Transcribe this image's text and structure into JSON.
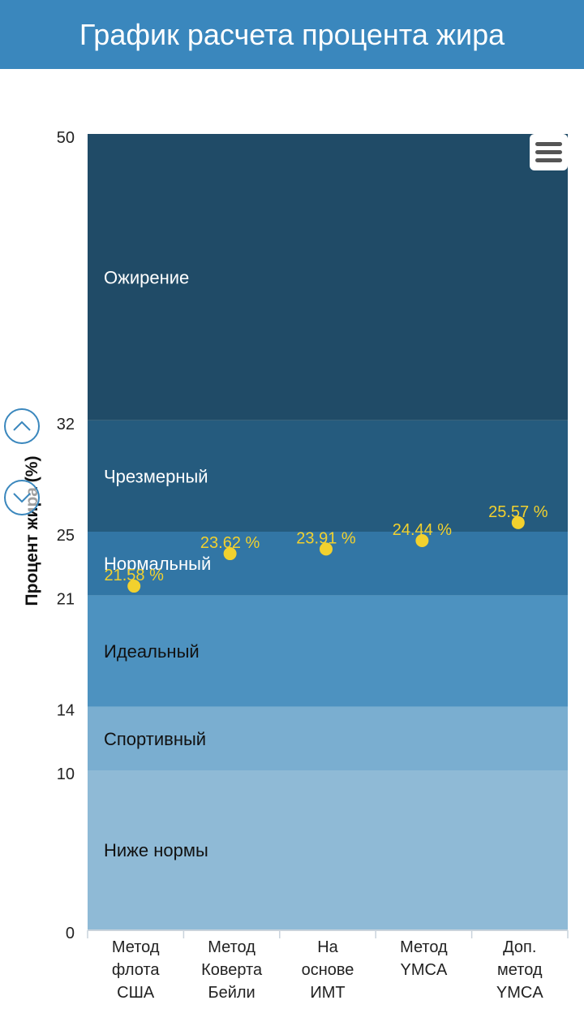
{
  "header": {
    "title": "График расчета процента жира"
  },
  "chart_data": {
    "type": "scatter",
    "title": "График расчета процента жира",
    "ylabel": "Процент жира (%)",
    "ylim": [
      0,
      50
    ],
    "yticks": [
      0,
      10,
      14,
      21,
      25,
      32,
      50
    ],
    "categories": [
      [
        "Метод",
        "флота",
        "США"
      ],
      [
        "Метод",
        "Коверта",
        "Бейли"
      ],
      [
        "На",
        "основе",
        "ИМТ"
      ],
      [
        "Метод",
        "YMCA"
      ],
      [
        "Доп.",
        "метод",
        "YMCA"
      ]
    ],
    "values": [
      21.58,
      23.62,
      23.91,
      24.44,
      25.57
    ],
    "value_labels": [
      "21.58 %",
      "23.62 %",
      "23.91 %",
      "24.44 %",
      "25.57 %"
    ],
    "point_color": "#f2d12e",
    "bands": [
      {
        "name": "Ниже нормы",
        "from": 0,
        "to": 10,
        "color": "#8fbad6",
        "text_color": "#111111"
      },
      {
        "name": "Спортивный",
        "from": 10,
        "to": 14,
        "color": "#7aaed0",
        "text_color": "#111111"
      },
      {
        "name": "Идеальный",
        "from": 14,
        "to": 21,
        "color": "#4d92c0",
        "text_color": "#111111"
      },
      {
        "name": "Нормальный",
        "from": 21,
        "to": 25,
        "color": "#3276a5",
        "text_color": "#ffffff"
      },
      {
        "name": "Чрезмерный",
        "from": 25,
        "to": 32,
        "color": "#255b7e",
        "text_color": "#ffffff"
      },
      {
        "name": "Ожирение",
        "from": 32,
        "to": 50,
        "color": "#204b67",
        "text_color": "#ffffff"
      }
    ]
  },
  "icons": {
    "menu": "hamburger-menu-icon",
    "up": "chevron-up-icon",
    "down": "chevron-down-icon"
  }
}
